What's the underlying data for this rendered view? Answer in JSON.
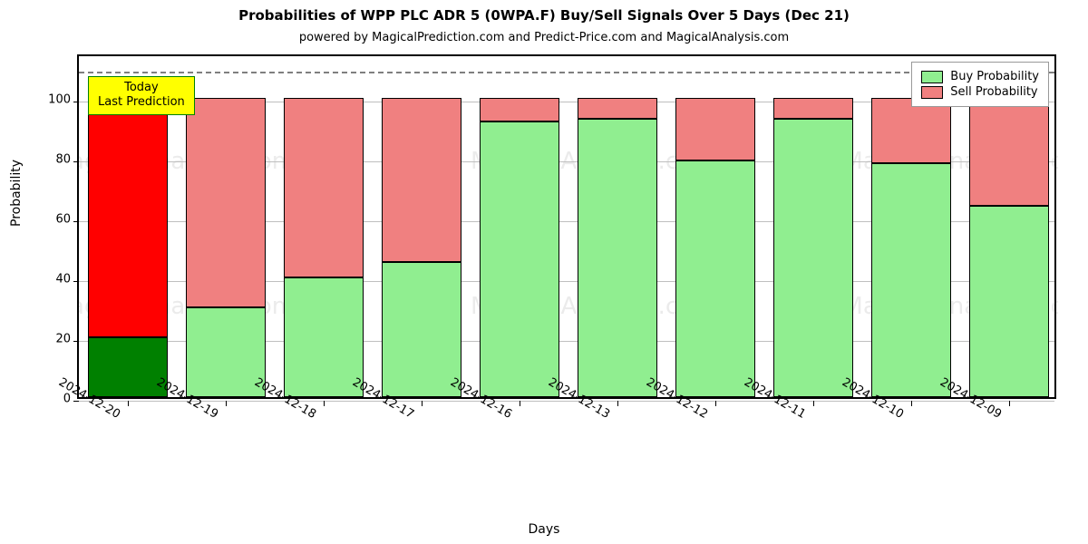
{
  "title": "Probabilities of WPP PLC ADR 5 (0WPA.F) Buy/Sell Signals Over 5 Days (Dec 21)",
  "subtitle": "powered by MagicalPrediction.com and Predict-Price.com and MagicalAnalysis.com",
  "title_fontsize": 15,
  "title_weight": "bold",
  "subtitle_fontsize": 13,
  "ylabel": "Probability",
  "xlabel": "Days",
  "axis_label_fontsize": 14,
  "tick_fontsize": 13,
  "background_color": "#ffffff",
  "border_color": "#000000",
  "grid_color": "#bfbfbf",
  "ref_line_color": "#7f7f7f",
  "ref_line_value": 110,
  "ylim": [
    0,
    115
  ],
  "yticks": [
    0,
    20,
    40,
    60,
    80,
    100
  ],
  "bar_width_ratio": 0.82,
  "categories": [
    "2024-12-20",
    "2024-12-19",
    "2024-12-18",
    "2024-12-17",
    "2024-12-16",
    "2024-12-13",
    "2024-12-12",
    "2024-12-11",
    "2024-12-10",
    "2024-12-09"
  ],
  "buy_values": [
    20,
    30,
    40,
    45,
    92,
    93,
    79,
    93,
    78,
    64
  ],
  "sell_values": [
    80,
    70,
    60,
    55,
    8,
    7,
    21,
    7,
    22,
    36
  ],
  "buy_colors": [
    "#008000",
    "#90ee90",
    "#90ee90",
    "#90ee90",
    "#90ee90",
    "#90ee90",
    "#90ee90",
    "#90ee90",
    "#90ee90",
    "#90ee90"
  ],
  "sell_colors": [
    "#ff0000",
    "#f08080",
    "#f08080",
    "#f08080",
    "#f08080",
    "#f08080",
    "#f08080",
    "#f08080",
    "#f08080",
    "#f08080"
  ],
  "legend": {
    "items": [
      {
        "label": "Buy Probability",
        "color": "#90ee90"
      },
      {
        "label": "Sell Probability",
        "color": "#f08080"
      }
    ],
    "fontsize": 13
  },
  "callout": {
    "line1": "Today",
    "line2": "Last Prediction",
    "bg": "#ffff00",
    "border": "#008000",
    "fontsize": 13
  },
  "watermark": {
    "text": "MagicalAnalysis.com",
    "color": "#7f7f7f",
    "opacity": 0.15,
    "fontsize": 26
  }
}
